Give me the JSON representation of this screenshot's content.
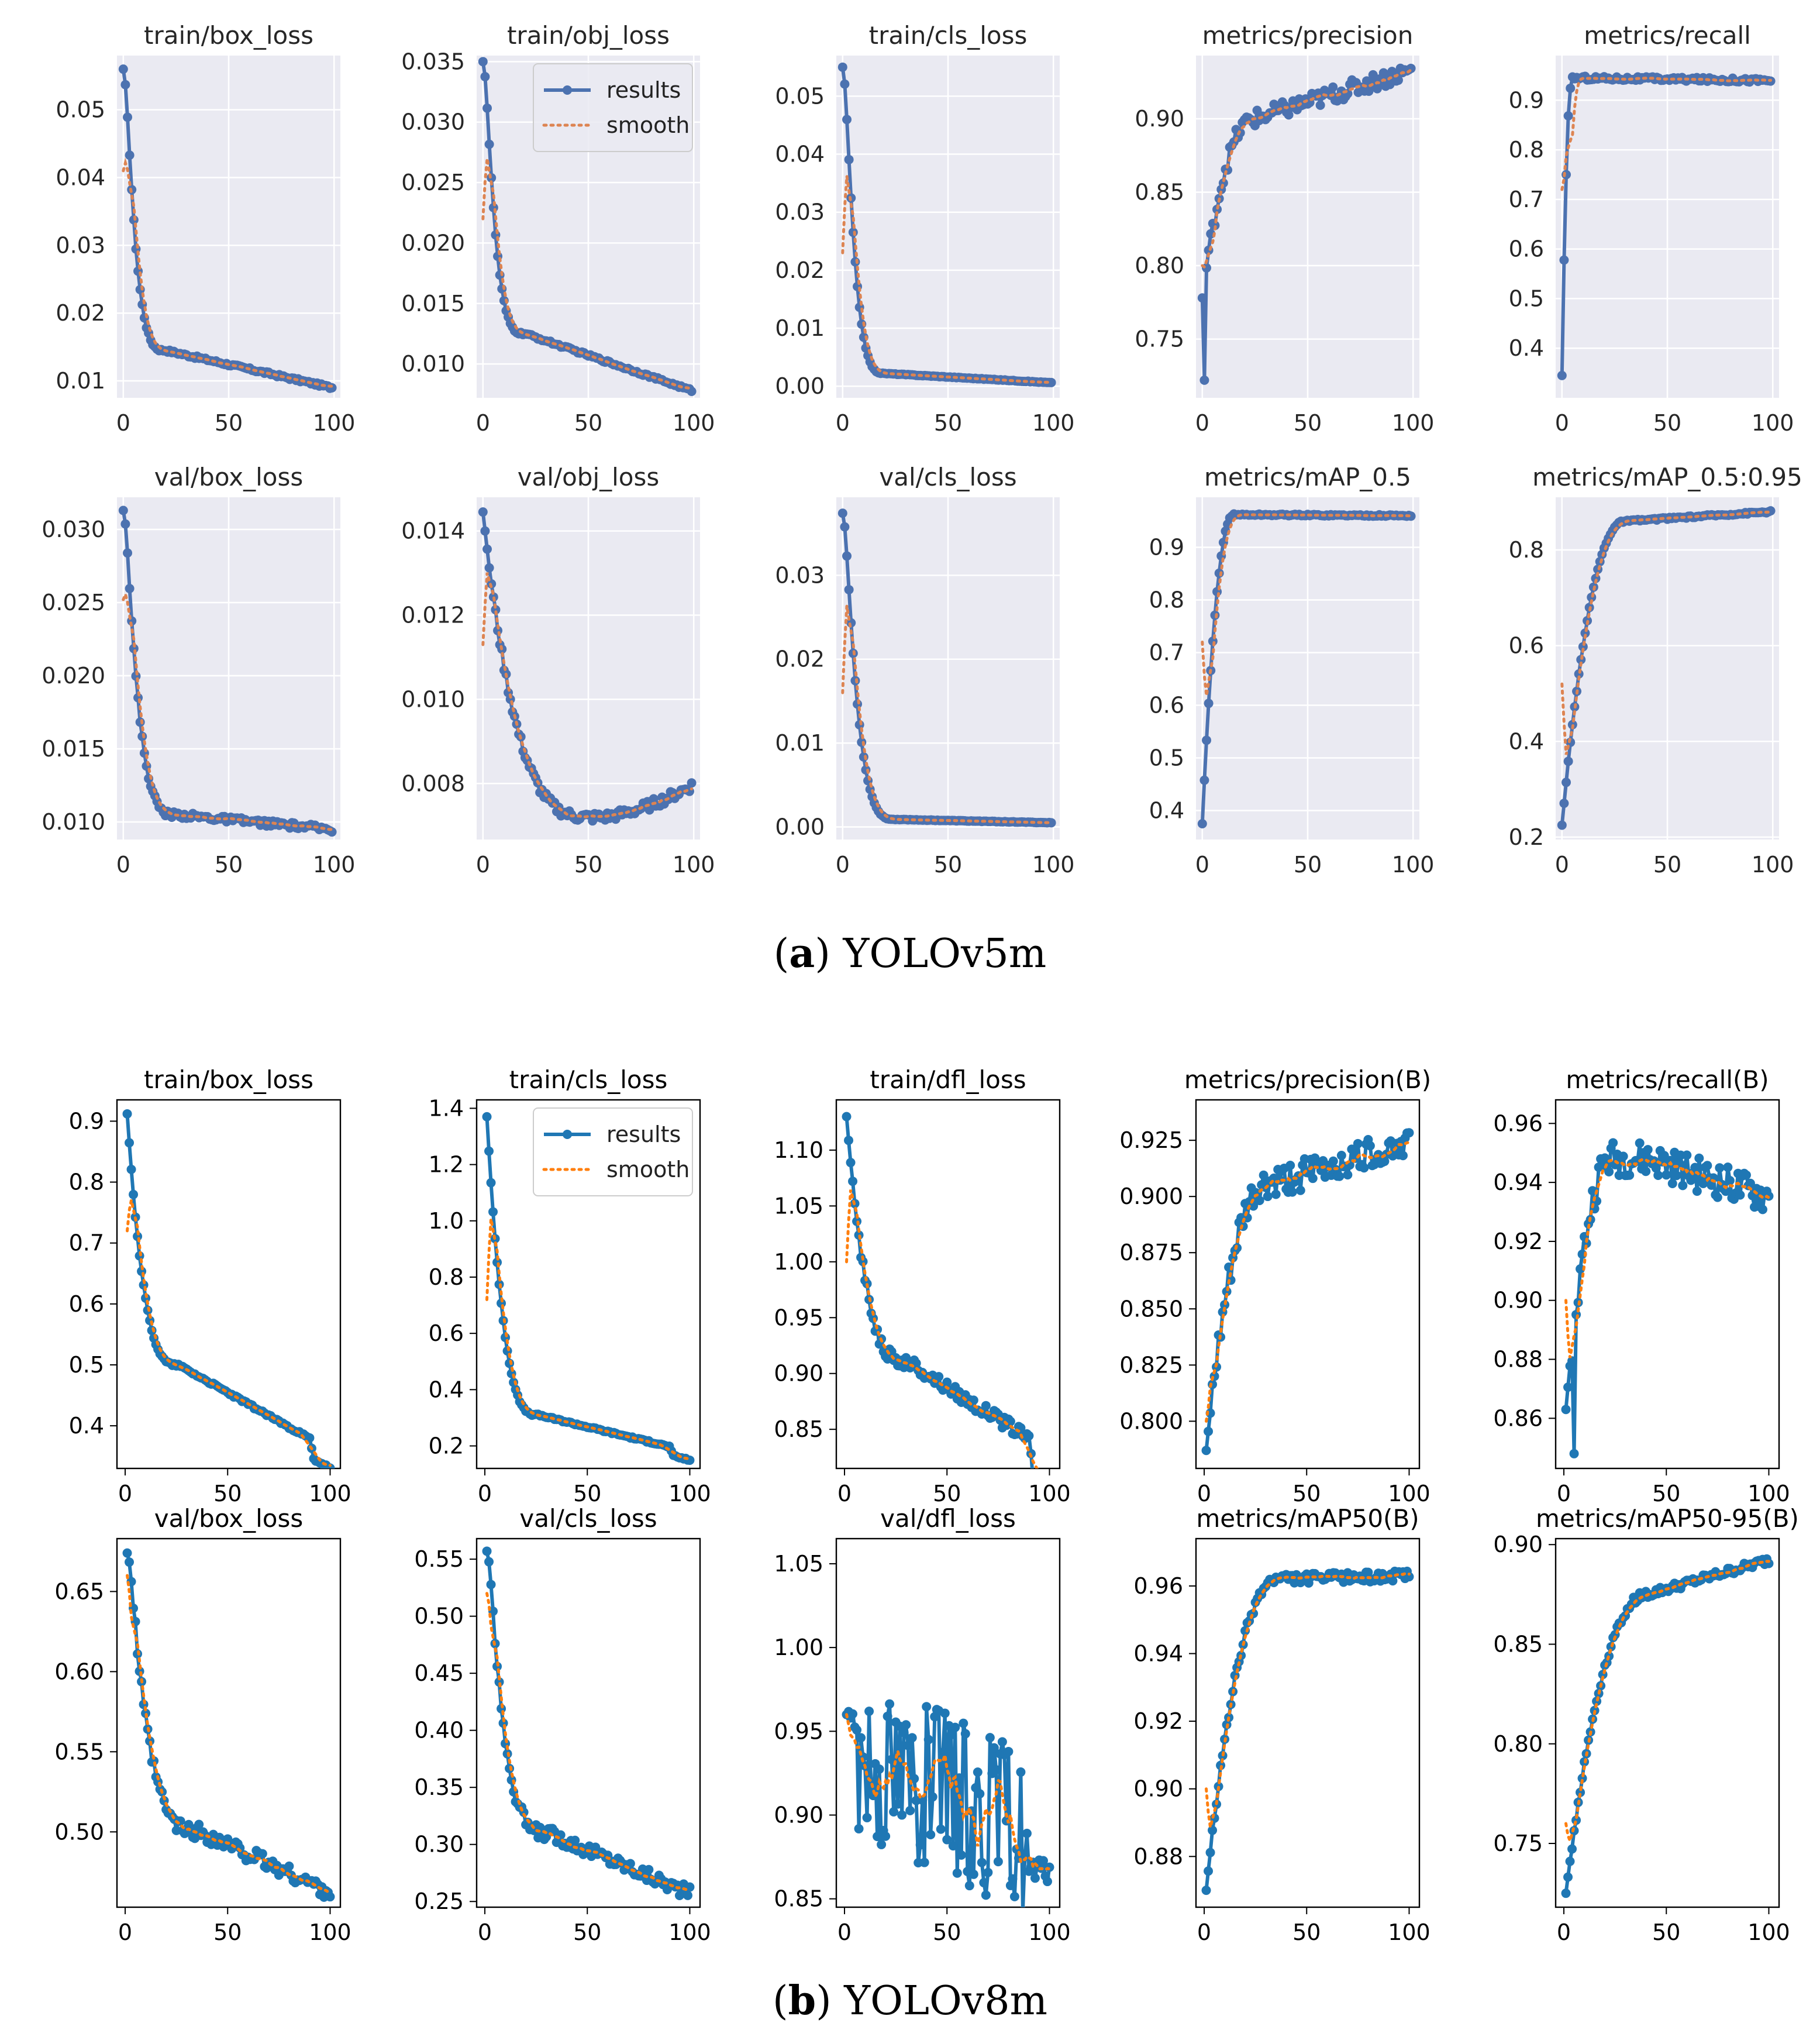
{
  "figures": [
    {
      "key": "a",
      "caption_letter": "a",
      "caption_text": "YOLOv5m",
      "style": "seaborn"
    },
    {
      "key": "b",
      "caption_letter": "b",
      "caption_text": "YOLOv8m",
      "style": "default"
    }
  ],
  "colors": {
    "v5_results": "#4c72b0",
    "v5_smooth": "#dd8452",
    "v5_bg": "#eaeaf2",
    "v8_results": "#1f77b4",
    "v8_smooth": "#ff7f0e"
  },
  "legend_labels": [
    "results",
    "smooth"
  ],
  "chart_data": [
    {
      "figure": "a",
      "row": 0,
      "col": 0,
      "type": "line",
      "title": "train/box_loss",
      "xlim": [
        -3,
        103
      ],
      "ylim": [
        0.0075,
        0.058
      ],
      "xticks": [
        0,
        50,
        100
      ],
      "yticks": [
        0.01,
        0.02,
        0.03,
        0.04,
        0.05
      ],
      "ydecimals": 2,
      "decay": {
        "kind": "power",
        "start": 0.056,
        "end": 0.009,
        "mid": 0.0145,
        "midx": 20,
        "noise": 0.0002,
        "sm_start": 0.041
      },
      "legend": false
    },
    {
      "figure": "a",
      "row": 0,
      "col": 1,
      "type": "line",
      "title": "train/obj_loss",
      "xlim": [
        -3,
        103
      ],
      "ylim": [
        0.0072,
        0.0355
      ],
      "xticks": [
        0,
        50,
        100
      ],
      "yticks": [
        0.01,
        0.015,
        0.02,
        0.025,
        0.03,
        0.035
      ],
      "ydecimals": 3,
      "decay": {
        "kind": "power",
        "start": 0.035,
        "end": 0.0078,
        "mid": 0.0125,
        "midx": 20,
        "noise": 0.0001,
        "sm_start": 0.022
      },
      "legend": true
    },
    {
      "figure": "a",
      "row": 0,
      "col": 2,
      "type": "line",
      "title": "train/cls_loss",
      "xlim": [
        -3,
        103
      ],
      "ylim": [
        -0.002,
        0.057
      ],
      "xticks": [
        0,
        50,
        100
      ],
      "yticks": [
        0.0,
        0.01,
        0.02,
        0.03,
        0.04,
        0.05
      ],
      "ydecimals": 2,
      "decay": {
        "kind": "power",
        "start": 0.055,
        "end": 0.0006,
        "mid": 0.0022,
        "midx": 20,
        "noise": 5e-05,
        "sm_start": 0.023
      },
      "legend": false
    },
    {
      "figure": "a",
      "row": 0,
      "col": 3,
      "type": "line",
      "title": "metrics/precision",
      "xlim": [
        -3,
        103
      ],
      "ylim": [
        0.71,
        0.943
      ],
      "xticks": [
        0,
        50,
        100
      ],
      "yticks": [
        0.75,
        0.8,
        0.85,
        0.9
      ],
      "ydecimals": 2,
      "decay": {
        "kind": "rise",
        "start": 0.778,
        "end": 0.933,
        "mid": 0.9,
        "midx": 25,
        "noise": 0.006,
        "dip": [
          1,
          0.722
        ],
        "sm_start": 0.8
      },
      "legend": false
    },
    {
      "figure": "a",
      "row": 0,
      "col": 4,
      "type": "line",
      "title": "metrics/recall",
      "xlim": [
        -3,
        103
      ],
      "ylim": [
        0.3,
        0.99
      ],
      "xticks": [
        0,
        50,
        100
      ],
      "yticks": [
        0.4,
        0.5,
        0.6,
        0.7,
        0.8,
        0.9
      ],
      "ydecimals": 1,
      "decay": {
        "kind": "rise",
        "start": 0.345,
        "end": 0.94,
        "mid": 0.945,
        "midx": 5,
        "noise": 0.004,
        "sm_start": 0.72
      },
      "legend": false
    },
    {
      "figure": "a",
      "row": 1,
      "col": 0,
      "type": "line",
      "title": "val/box_loss",
      "xlim": [
        -3,
        103
      ],
      "ylim": [
        0.0088,
        0.0322
      ],
      "xticks": [
        0,
        50,
        100
      ],
      "yticks": [
        0.01,
        0.015,
        0.02,
        0.025,
        0.03
      ],
      "ydecimals": 3,
      "decay": {
        "kind": "power",
        "start": 0.0313,
        "end": 0.0095,
        "mid": 0.0105,
        "midx": 25,
        "noise": 0.0002,
        "sm_start": 0.0252
      },
      "legend": false
    },
    {
      "figure": "a",
      "row": 1,
      "col": 1,
      "type": "line",
      "title": "val/obj_loss",
      "xlim": [
        -3,
        103
      ],
      "ylim": [
        0.00667,
        0.0148
      ],
      "xticks": [
        0,
        50,
        100
      ],
      "yticks": [
        0.008,
        0.01,
        0.012,
        0.014
      ],
      "ydecimals": 3,
      "decay": {
        "kind": "ushape",
        "start": 0.01445,
        "end": 0.00795,
        "mid": 0.0072,
        "midx": 55,
        "noise": 0.00012,
        "sm_start": 0.0113
      },
      "legend": false
    },
    {
      "figure": "a",
      "row": 1,
      "col": 2,
      "type": "line",
      "title": "val/cls_loss",
      "xlim": [
        -3,
        103
      ],
      "ylim": [
        -0.0015,
        0.0393
      ],
      "xticks": [
        0,
        50,
        100
      ],
      "yticks": [
        0.0,
        0.01,
        0.02,
        0.03
      ],
      "ydecimals": 2,
      "decay": {
        "kind": "power",
        "start": 0.0374,
        "end": 0.0005,
        "mid": 0.0009,
        "midx": 25,
        "noise": 3e-05,
        "sm_start": 0.016
      },
      "legend": false
    },
    {
      "figure": "a",
      "row": 1,
      "col": 3,
      "type": "line",
      "title": "metrics/mAP_0.5",
      "xlim": [
        -3,
        103
      ],
      "ylim": [
        0.345,
        0.995
      ],
      "xticks": [
        0,
        50,
        100
      ],
      "yticks": [
        0.4,
        0.5,
        0.6,
        0.7,
        0.8,
        0.9
      ],
      "ydecimals": 1,
      "decay": {
        "kind": "rise",
        "start": 0.375,
        "end": 0.96,
        "mid": 0.962,
        "midx": 15,
        "noise": 0.0015,
        "sm_start": 0.72
      },
      "legend": false
    },
    {
      "figure": "a",
      "row": 1,
      "col": 4,
      "type": "line",
      "title": "metrics/mAP_0.5:0.95",
      "xlim": [
        -3,
        103
      ],
      "ylim": [
        0.195,
        0.91
      ],
      "xticks": [
        0,
        50,
        100
      ],
      "yticks": [
        0.2,
        0.4,
        0.6,
        0.8
      ],
      "ydecimals": 1,
      "decay": {
        "kind": "rise",
        "start": 0.225,
        "end": 0.88,
        "mid": 0.86,
        "midx": 30,
        "noise": 0.002,
        "sm_start": 0.52
      },
      "legend": false
    },
    {
      "figure": "b",
      "row": 0,
      "col": 0,
      "type": "line",
      "title": "train/box_loss",
      "xlim": [
        -4,
        105
      ],
      "ylim": [
        0.33,
        0.935
      ],
      "xticks": [
        0,
        50,
        100
      ],
      "yticks": [
        0.4,
        0.5,
        0.6,
        0.7,
        0.8,
        0.9
      ],
      "ydecimals": 1,
      "decay": {
        "kind": "linear",
        "start": 0.912,
        "end": 0.36,
        "mid": 0.5,
        "midx": 25,
        "noise": 0.002,
        "sm_start": 0.72,
        "drop": [
          90,
          0.03
        ]
      },
      "legend": false
    },
    {
      "figure": "b",
      "row": 0,
      "col": 1,
      "type": "line",
      "title": "train/cls_loss",
      "xlim": [
        -4,
        105
      ],
      "ylim": [
        0.12,
        1.43
      ],
      "xticks": [
        0,
        50,
        100
      ],
      "yticks": [
        0.2,
        0.4,
        0.6,
        0.8,
        1.0,
        1.2,
        1.4
      ],
      "ydecimals": 1,
      "decay": {
        "kind": "linear",
        "start": 1.37,
        "end": 0.18,
        "mid": 0.31,
        "midx": 25,
        "noise": 0.003,
        "sm_start": 0.72,
        "drop": [
          90,
          0.03
        ]
      },
      "legend": true
    },
    {
      "figure": "b",
      "row": 0,
      "col": 2,
      "type": "line",
      "title": "train/dfl_loss",
      "xlim": [
        -4,
        105
      ],
      "ylim": [
        0.815,
        1.145
      ],
      "xticks": [
        0,
        50,
        100
      ],
      "yticks": [
        0.85,
        0.9,
        0.95,
        1.0,
        1.05,
        1.1
      ],
      "ydecimals": 2,
      "decay": {
        "kind": "linear",
        "start": 1.13,
        "end": 0.83,
        "mid": 0.91,
        "midx": 30,
        "noise": 0.006,
        "sm_start": 1.0,
        "drop": [
          90,
          0.03
        ]
      },
      "legend": false
    },
    {
      "figure": "b",
      "row": 0,
      "col": 3,
      "type": "line",
      "title": "metrics/precision(B)",
      "xlim": [
        -4,
        105
      ],
      "ylim": [
        0.779,
        0.943
      ],
      "xticks": [
        0,
        50,
        100
      ],
      "yticks": [
        0.8,
        0.825,
        0.85,
        0.875,
        0.9,
        0.925
      ],
      "ydecimals": 3,
      "decay": {
        "kind": "rise",
        "start": 0.787,
        "end": 0.924,
        "mid": 0.905,
        "midx": 30,
        "noise": 0.007,
        "sm_start": 0.8
      },
      "legend": false
    },
    {
      "figure": "b",
      "row": 0,
      "col": 4,
      "type": "line",
      "title": "metrics/recall(B)",
      "xlim": [
        -4,
        105
      ],
      "ylim": [
        0.843,
        0.968
      ],
      "xticks": [
        0,
        50,
        100
      ],
      "yticks": [
        0.86,
        0.88,
        0.9,
        0.92,
        0.94,
        0.96
      ],
      "ydecimals": 2,
      "decay": {
        "kind": "hump",
        "start": 0.863,
        "end": 0.935,
        "mid": 0.948,
        "midx": 35,
        "noise": 0.006,
        "dip": [
          4,
          0.848
        ],
        "sm_start": 0.9
      },
      "legend": false
    },
    {
      "figure": "b",
      "row": 1,
      "col": 0,
      "type": "line",
      "title": "val/box_loss",
      "xlim": [
        -4,
        105
      ],
      "ylim": [
        0.453,
        0.683
      ],
      "xticks": [
        0,
        50,
        100
      ],
      "yticks": [
        0.5,
        0.55,
        0.6,
        0.65
      ],
      "ydecimals": 2,
      "decay": {
        "kind": "power",
        "start": 0.674,
        "end": 0.462,
        "mid": 0.5,
        "midx": 35,
        "noise": 0.005,
        "sm_start": 0.66
      },
      "legend": false
    },
    {
      "figure": "b",
      "row": 1,
      "col": 1,
      "type": "line",
      "title": "val/cls_loss",
      "xlim": [
        -4,
        105
      ],
      "ylim": [
        0.245,
        0.568
      ],
      "xticks": [
        0,
        50,
        100
      ],
      "yticks": [
        0.25,
        0.3,
        0.35,
        0.4,
        0.45,
        0.5,
        0.55
      ],
      "ydecimals": 2,
      "decay": {
        "kind": "power",
        "start": 0.557,
        "end": 0.257,
        "mid": 0.31,
        "midx": 30,
        "noise": 0.006,
        "sm_start": 0.52
      },
      "legend": false
    },
    {
      "figure": "b",
      "row": 1,
      "col": 2,
      "type": "line",
      "title": "val/dfl_loss",
      "xlim": [
        -4,
        105
      ],
      "ylim": [
        0.845,
        1.065
      ],
      "xticks": [
        0,
        50,
        100
      ],
      "yticks": [
        0.85,
        0.9,
        0.95,
        1.0,
        1.05
      ],
      "ydecimals": 2,
      "decay": {
        "kind": "noisy",
        "start": 0.96,
        "end": 0.866,
        "mid": 0.94,
        "midx": 40,
        "noise": 0.05,
        "sm_start": 0.96
      },
      "legend": false
    },
    {
      "figure": "b",
      "row": 1,
      "col": 3,
      "type": "line",
      "title": "metrics/mAP50(B)",
      "xlim": [
        -4,
        105
      ],
      "ylim": [
        0.865,
        0.974
      ],
      "xticks": [
        0,
        50,
        100
      ],
      "yticks": [
        0.88,
        0.9,
        0.92,
        0.94,
        0.96
      ],
      "ydecimals": 2,
      "decay": {
        "kind": "rise",
        "start": 0.87,
        "end": 0.963,
        "mid": 0.962,
        "midx": 35,
        "noise": 0.0015,
        "sm_start": 0.9
      },
      "legend": false
    },
    {
      "figure": "b",
      "row": 1,
      "col": 4,
      "type": "line",
      "title": "metrics/mAP50-95(B)",
      "xlim": [
        -4,
        105
      ],
      "ylim": [
        0.718,
        0.903
      ],
      "xticks": [
        0,
        50,
        100
      ],
      "yticks": [
        0.75,
        0.8,
        0.85,
        0.9
      ],
      "ydecimals": 2,
      "decay": {
        "kind": "rise",
        "start": 0.725,
        "end": 0.892,
        "mid": 0.875,
        "midx": 40,
        "noise": 0.002,
        "sm_start": 0.76
      },
      "legend": false
    }
  ]
}
